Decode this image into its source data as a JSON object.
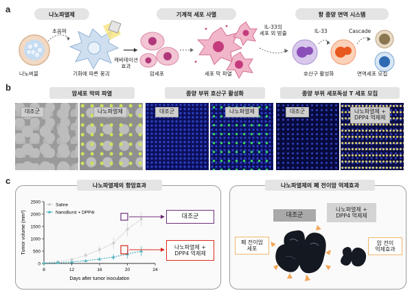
{
  "panel_a": {
    "letter": "a",
    "stage1_title": "나노파열제",
    "stage2_title": "기계적 세포 사멸",
    "stage3_title": "항 종양 면역 시스템",
    "ultrasound": "초음파",
    "nanobubble": "나노버블",
    "collapse": "기화에 따른 붕괴",
    "cavitation": "캐비테이션\n효과",
    "cancer_cell": "암세포",
    "membrane_rupture": "세포 막 파열",
    "il33_release": "IL-33의\n세포 외 방출",
    "il33": "IL-33",
    "cascade": "Cascade",
    "eosinophil": "호산구 활성화",
    "immune_recruit": "면역세포 모집"
  },
  "panel_b": {
    "letter": "b",
    "group1_title": "암세포 막의 파열",
    "group2_title": "종양 부위 호산구 활성화",
    "group3_title": "종양 부위 세포독성 T 세포 모집",
    "control": "대조군",
    "treatment": "나노파열제",
    "treatment_combo": "나노파열제 +\nDPP4 억제제"
  },
  "panel_c": {
    "letter": "c",
    "left_title": "나노파열제의 항암효과",
    "right_title": "나노파열제의 폐 전이암 억제효과",
    "control_label": "대조군",
    "combo_label": "나노파열제 +\nDPP4 억제제",
    "right_control": "대조군",
    "right_combo": "나노파열제 +\nDPP4 억제제",
    "metastasis_cells": "폐 전이암\n세포",
    "metastasis_inhibit": "암 전이\n억제효과"
  },
  "chart_data": {
    "type": "line",
    "title": "",
    "xlabel": "Days after tumor inoculation",
    "ylabel": "Tumor volume (mm³)",
    "xlim": [
      8,
      24
    ],
    "ylim": [
      0,
      2500
    ],
    "xticks": [
      8,
      12,
      16,
      20,
      24
    ],
    "yticks": [
      0,
      500,
      1000,
      1500,
      2000,
      2500
    ],
    "legend_position": "top-left",
    "series": [
      {
        "name": "Saline",
        "color": "#cfcfcf",
        "x": [
          8,
          10,
          12,
          14,
          16,
          18,
          20,
          22
        ],
        "values": [
          20,
          70,
          160,
          330,
          560,
          820,
          1380,
          1800
        ],
        "error": [
          10,
          25,
          60,
          100,
          160,
          230,
          280,
          300
        ]
      },
      {
        "name": "NanoBurst + DPP4i",
        "color": "#4fb3bf",
        "x": [
          8,
          10,
          12,
          14,
          16,
          18,
          20,
          22
        ],
        "values": [
          15,
          30,
          60,
          110,
          180,
          260,
          380,
          500
        ],
        "error": [
          6,
          12,
          25,
          50,
          80,
          120,
          180,
          200
        ]
      }
    ]
  }
}
